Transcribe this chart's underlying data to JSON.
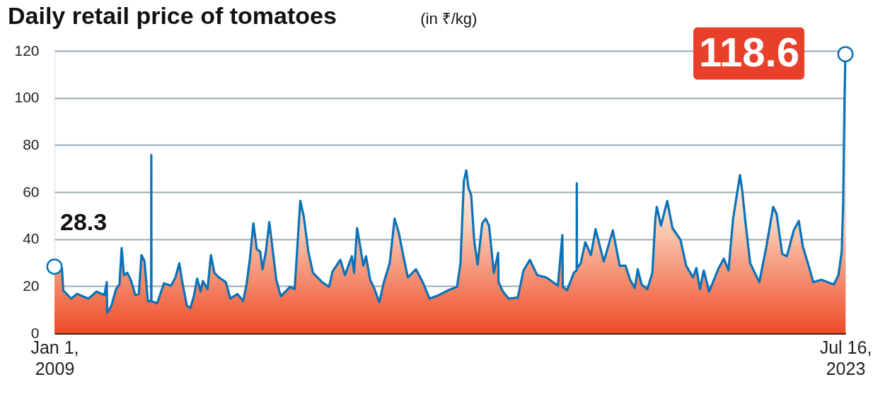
{
  "chart_data": {
    "type": "area",
    "title": "Daily retail price of tomatoes",
    "subtitle": "(in ₹/kg)",
    "x": [
      "2009-01-01",
      "2009-02-20",
      "2009-03-01",
      "2009-04-23",
      "2009-06-01",
      "2009-08-17",
      "2009-10-10",
      "2009-12-02",
      "2009-12-18",
      "2009-12-21",
      "2010-01-18",
      "2010-02-18",
      "2010-03-13",
      "2010-03-28",
      "2010-04-12",
      "2010-05-05",
      "2010-05-28",
      "2010-06-28",
      "2010-07-21",
      "2010-08-08",
      "2010-08-28",
      "2010-09-20",
      "2010-10-06",
      "2010-10-12",
      "2010-10-13",
      "2010-10-14",
      "2010-11-21",
      "2011-01-06",
      "2011-02-22",
      "2011-03-24",
      "2011-04-19",
      "2011-05-09",
      "2011-06-09",
      "2011-07-02",
      "2011-07-25",
      "2011-08-17",
      "2011-09-09",
      "2011-09-24",
      "2011-10-25",
      "2011-11-17",
      "2011-12-10",
      "2012-01-10",
      "2012-02-25",
      "2012-03-27",
      "2012-05-12",
      "2012-06-20",
      "2012-07-13",
      "2012-08-05",
      "2012-08-28",
      "2012-09-20",
      "2012-10-13",
      "2012-10-28",
      "2012-11-20",
      "2012-12-13",
      "2013-01-06",
      "2013-01-29",
      "2013-02-28",
      "2013-05-01",
      "2013-06-01",
      "2013-07-09",
      "2013-08-01",
      "2013-09-01",
      "2013-10-02",
      "2013-12-02",
      "2014-01-18",
      "2014-02-10",
      "2014-04-04",
      "2014-05-05",
      "2014-06-20",
      "2014-07-05",
      "2014-07-25",
      "2014-08-13",
      "2014-09-05",
      "2014-09-23",
      "2014-10-21",
      "2014-11-20",
      "2014-12-21",
      "2015-01-21",
      "2015-03-01",
      "2015-04-03",
      "2015-05-01",
      "2015-06-01",
      "2015-07-01",
      "2015-08-24",
      "2015-10-09",
      "2015-11-24",
      "2016-01-25",
      "2016-03-26",
      "2016-05-26",
      "2016-06-18",
      "2016-07-11",
      "2016-07-27",
      "2016-08-11",
      "2016-08-29",
      "2016-09-18",
      "2016-10-11",
      "2016-11-11",
      "2016-12-04",
      "2016-12-27",
      "2017-01-28",
      "2017-02-26",
      "2017-03-01",
      "2017-03-30",
      "2017-05-08",
      "2017-07-08",
      "2017-08-15",
      "2017-09-27",
      "2017-11-15",
      "2018-01-16",
      "2018-04-03",
      "2018-05-03",
      "2018-05-06",
      "2018-06-03",
      "2018-07-19",
      "2018-08-07",
      "2018-08-08",
      "2018-08-09",
      "2018-09-03",
      "2018-10-04",
      "2018-11-11",
      "2018-12-12",
      "2019-02-05",
      "2019-04-07",
      "2019-05-23",
      "2019-07-01",
      "2019-08-01",
      "2019-09-01",
      "2019-09-21",
      "2019-10-17",
      "2019-11-24",
      "2019-12-28",
      "2020-01-17",
      "2020-01-27",
      "2020-02-24",
      "2020-04-06",
      "2020-05-11",
      "2020-07-04",
      "2020-08-11",
      "2020-09-26",
      "2020-10-19",
      "2020-11-11",
      "2020-12-07",
      "2021-01-12",
      "2021-03-14",
      "2021-04-21",
      "2021-05-22",
      "2021-06-22",
      "2021-08-07",
      "2021-08-22",
      "2021-09-14",
      "2021-10-15",
      "2021-12-15",
      "2022-01-31",
      "2022-03-18",
      "2022-04-10",
      "2022-05-18",
      "2022-06-18",
      "2022-08-03",
      "2022-09-06",
      "2022-10-04",
      "2022-11-11",
      "2022-12-12",
      "2023-02-04",
      "2023-04-29",
      "2023-05-30",
      "2023-06-21",
      "2023-07-01",
      "2023-07-10",
      "2023-07-16"
    ],
    "series": [
      {
        "color": "#0a72b9",
        "values": [
          28.3,
          27.7,
          18.2,
          14.7,
          16.7,
          14.7,
          17.7,
          16.2,
          21.7,
          8.7,
          11.7,
          18.7,
          20.7,
          36.2,
          24.7,
          25.7,
          22.7,
          16.2,
          16.7,
          33.2,
          30.7,
          13.7,
          13.7,
          13.7,
          75.7,
          13.7,
          12.7,
          21.2,
          20.2,
          23.7,
          29.7,
          21.7,
          11.7,
          10.7,
          15.7,
          23.2,
          17.7,
          22.2,
          18.7,
          33.2,
          25.7,
          23.7,
          21.7,
          14.7,
          16.7,
          13.7,
          20.7,
          31.7,
          46.7,
          35.7,
          34.7,
          27.2,
          34.7,
          47.2,
          34.7,
          22.7,
          15.7,
          19.7,
          18.7,
          56.2,
          49.7,
          34.7,
          25.7,
          21.7,
          19.7,
          26.2,
          31.2,
          24.7,
          32.7,
          25.7,
          44.7,
          37.7,
          28.7,
          32.7,
          22.7,
          18.7,
          13.2,
          21.7,
          29.7,
          48.7,
          42.7,
          32.7,
          23.7,
          27.2,
          21.7,
          14.7,
          16.2,
          18.2,
          19.7,
          29.7,
          64.7,
          69.2,
          61.7,
          58.7,
          39.7,
          29.2,
          46.7,
          48.7,
          45.7,
          25.7,
          34.2,
          21.7,
          17.7,
          14.7,
          15.2,
          26.7,
          31.2,
          24.7,
          23.7,
          20.2,
          41.7,
          19.7,
          18.2,
          25.7,
          26.7,
          63.7,
          27.7,
          29.7,
          38.7,
          33.2,
          44.2,
          30.5,
          43.7,
          28.7,
          28.7,
          22.7,
          19.2,
          27.2,
          20.7,
          18.7,
          25.7,
          48.7,
          53.7,
          45.7,
          56.2,
          44.7,
          39.7,
          28.7,
          23.7,
          27.7,
          18.7,
          26.7,
          17.7,
          27.2,
          31.7,
          26.7,
          48.7,
          67.2,
          60.7,
          46.7,
          29.7,
          21.7,
          36.7,
          53.7,
          50.7,
          33.7,
          32.7,
          43.7,
          47.7,
          36.7,
          28.7,
          21.7,
          22.7,
          20.7,
          24.7,
          34.7,
          55,
          100,
          118.6
        ]
      }
    ],
    "xlim": [
      "2009-01-01",
      "2023-07-16"
    ],
    "xticks": [
      {
        "value": "2009-01-01",
        "label": "Jan 1,\n2009"
      },
      {
        "value": "2023-07-16",
        "label": "Jul 16,\n2023"
      }
    ],
    "ylim": [
      0,
      120
    ],
    "yticks": [
      0,
      20,
      40,
      60,
      80,
      100,
      120
    ],
    "grid": "y",
    "annotations": [
      {
        "text": "28.3",
        "x": "2009-01-01",
        "y": 28.3
      },
      {
        "text": "118.6",
        "x": "2023-07-16",
        "y": 118.6
      }
    ]
  }
}
